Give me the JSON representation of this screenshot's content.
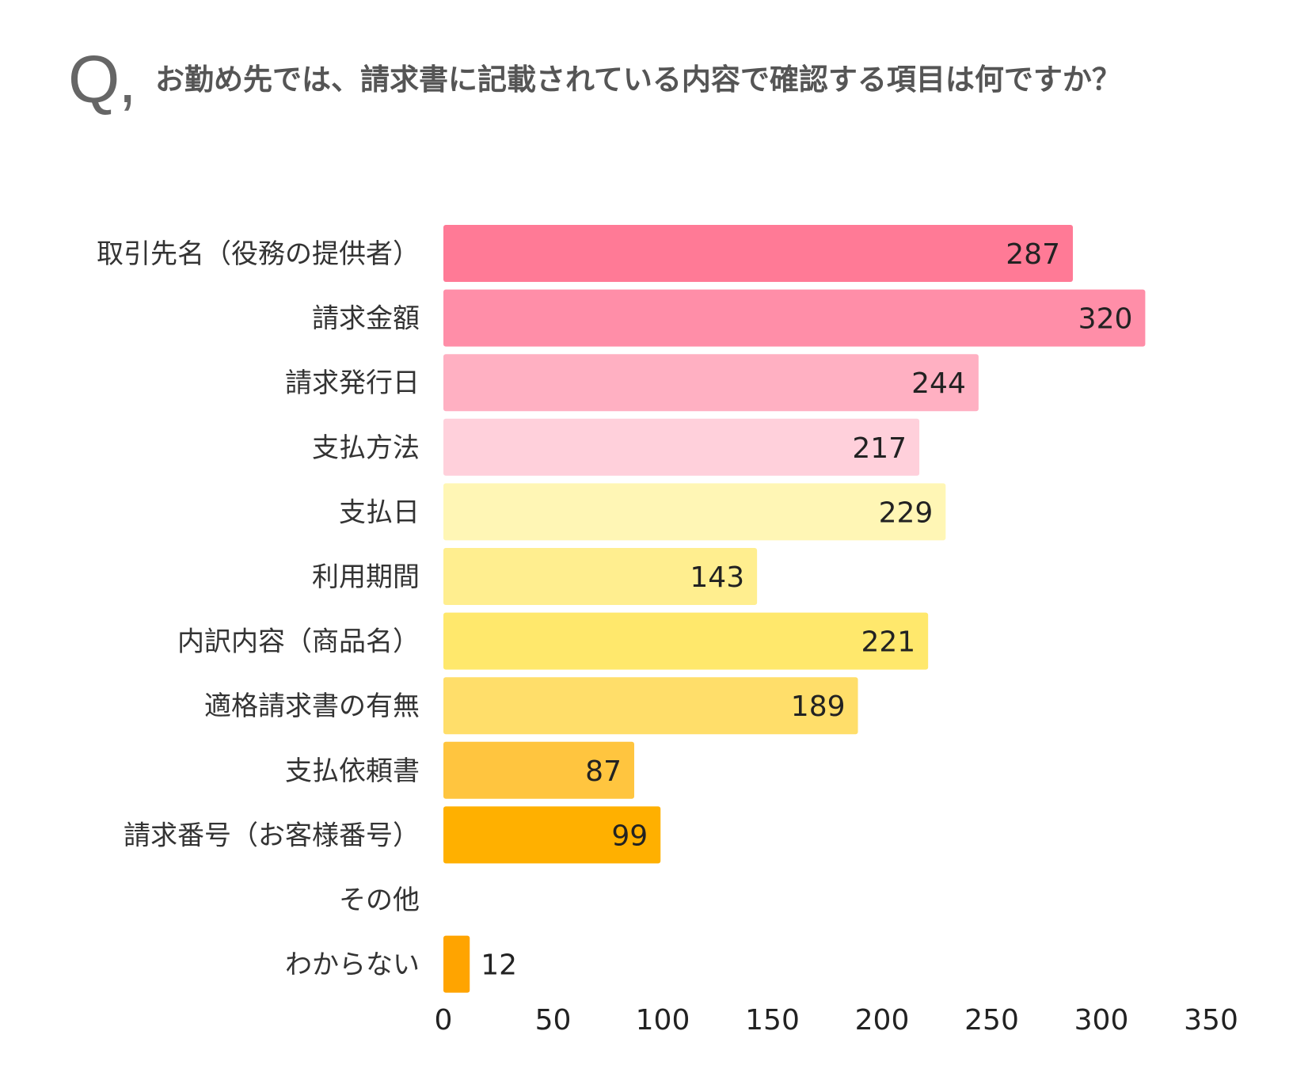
{
  "question": {
    "marker": "Q,",
    "text": "お勤め先では、請求書に記載されている内容で確認する項目は何ですか？"
  },
  "chart_data": {
    "type": "bar",
    "orientation": "horizontal",
    "title": "お勤め先では、請求書に記載されている内容で確認する項目は何ですか？",
    "categories": [
      "取引先名（役務の提供者）",
      "請求金額",
      "請求発行日",
      "支払方法",
      "支払日",
      "利用期間",
      "内訳内容（商品名）",
      "適格請求書の有無",
      "支払依頼書",
      "請求番号（お客様番号）",
      "その他",
      "わからない"
    ],
    "values": [
      287,
      320,
      244,
      217,
      229,
      143,
      221,
      189,
      87,
      99,
      null,
      12
    ],
    "value_labels": [
      "287",
      "320",
      "244",
      "217",
      "229",
      "143",
      "221",
      "189",
      "87",
      "99",
      "",
      "12"
    ],
    "colors": [
      "#FF7A96",
      "#FF8EA8",
      "#FFB0C2",
      "#FFD0DB",
      "#FFF6B5",
      "#FFEE8F",
      "#FFE86C",
      "#FFDE6A",
      "#FFC53F",
      "#FFB000",
      "#FFB000",
      "#FFA400"
    ],
    "xlim": [
      0,
      350
    ],
    "xticks": [
      "0",
      "50",
      "100",
      "150",
      "200",
      "250",
      "300",
      "350"
    ],
    "grid": false,
    "legend": "none"
  }
}
